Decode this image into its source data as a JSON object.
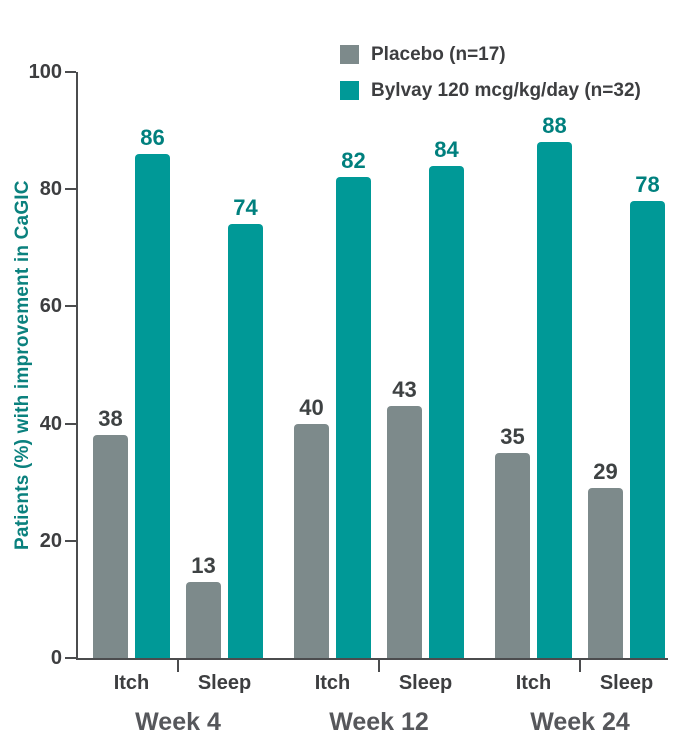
{
  "chart_data": {
    "type": "bar",
    "title": "",
    "ylabel": "Patients (%) with improvement in CaGIC",
    "xlabel": "",
    "ylim": [
      0,
      100
    ],
    "yticks": [
      0,
      20,
      40,
      60,
      80,
      100
    ],
    "categories": [
      "Itch",
      "Sleep",
      "Itch",
      "Sleep",
      "Itch",
      "Sleep"
    ],
    "week_groups": [
      "Week 4",
      "Week 12",
      "Week 24"
    ],
    "series": [
      {
        "name": "Placebo (n=17)",
        "color": "#7d8a8b",
        "label_color": "#3e4243",
        "values": [
          38,
          13,
          40,
          43,
          35,
          29
        ]
      },
      {
        "name": "Bylvay 120 mcg/kg/day (n=32)",
        "color": "#009997",
        "label_color": "#00807e",
        "values": [
          86,
          74,
          82,
          84,
          88,
          78
        ]
      }
    ],
    "legend_position": "top-right",
    "grid": false
  },
  "colors": {
    "background": "#ffffff",
    "axis": "#4b4c4e",
    "tick_text": "#3d3e40",
    "category_text": "#3d3e40",
    "week_text": "#56575b",
    "ylabel_text": "#0b817e",
    "legend_text": "#3d3e40"
  }
}
